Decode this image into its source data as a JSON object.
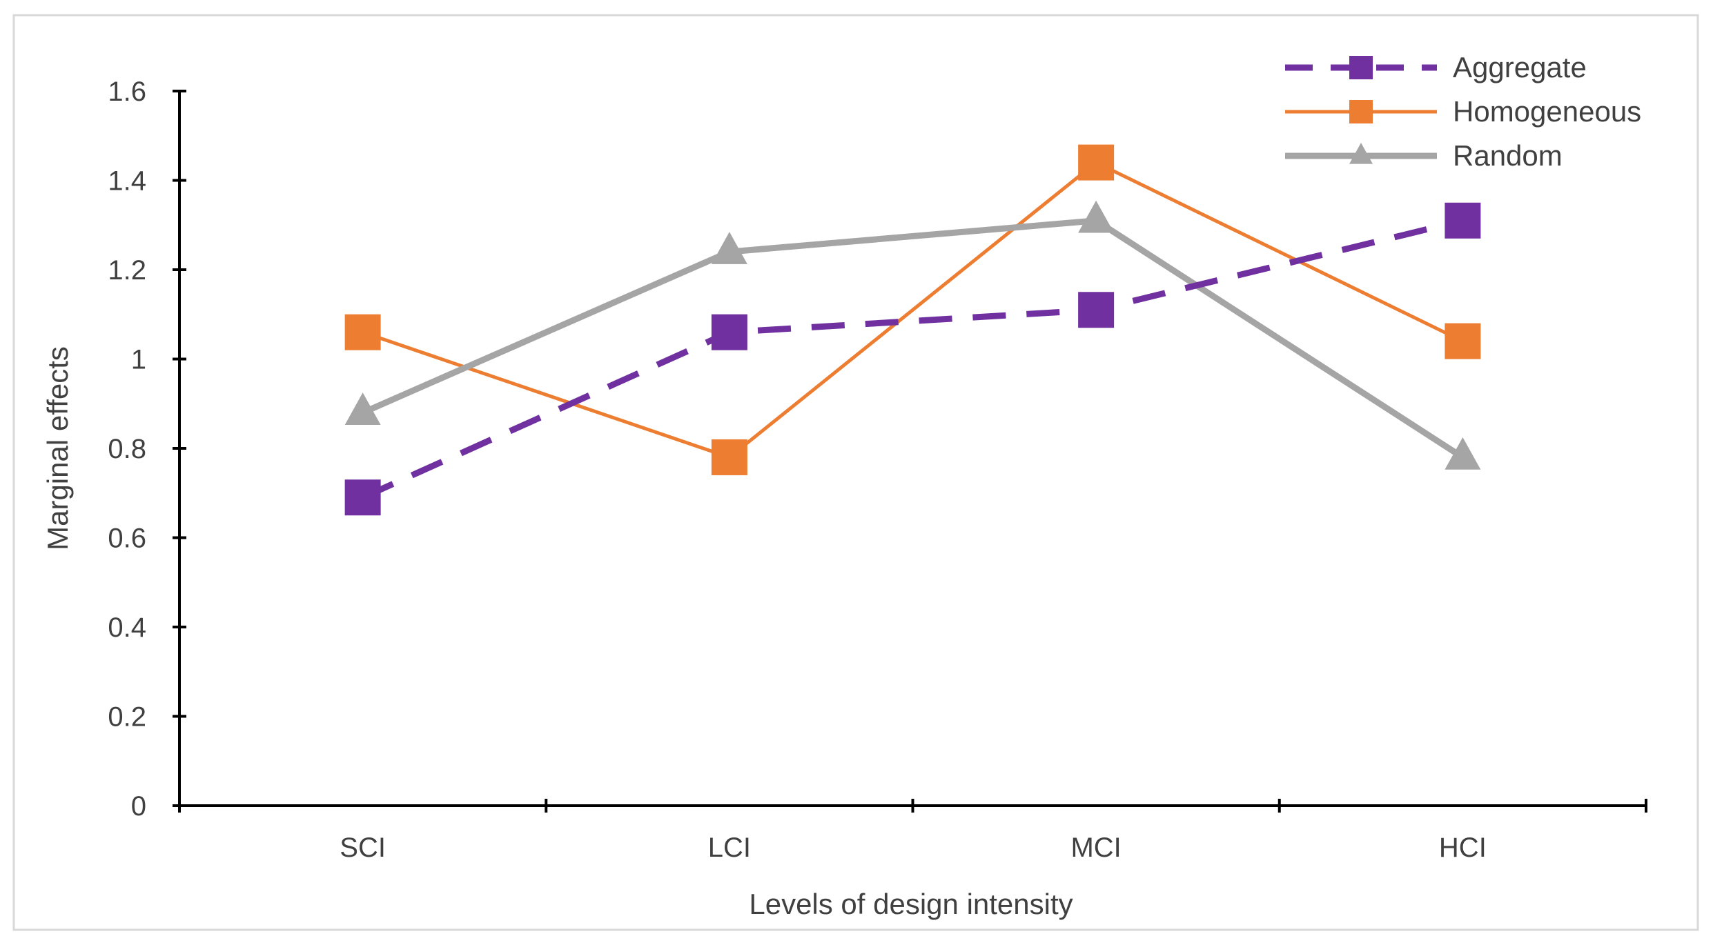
{
  "chart_data": {
    "type": "line",
    "xlabel": "Levels of design intensity",
    "ylabel": "Marginal effects",
    "categories": [
      "SCI",
      "LCI",
      "MCI",
      "HCI"
    ],
    "ylim": [
      0,
      1.6
    ],
    "yticks": [
      "0",
      "0.2",
      "0.4",
      "0.6",
      "0.8",
      "1",
      "1.2",
      "1.4",
      "1.6"
    ],
    "grid": false,
    "legend_position": "top-right",
    "series": [
      {
        "name": "Aggregate",
        "values": [
          0.69,
          1.06,
          1.11,
          1.31
        ],
        "color": "#7030A0",
        "line": "dashed",
        "marker": "square"
      },
      {
        "name": "Homogeneous",
        "values": [
          1.06,
          0.78,
          1.44,
          1.04
        ],
        "color": "#ED7D31",
        "line": "solid",
        "marker": "square"
      },
      {
        "name": "Random",
        "values": [
          0.88,
          1.24,
          1.31,
          0.78
        ],
        "color": "#A5A5A5",
        "line": "solid",
        "marker": "triangle"
      }
    ]
  }
}
